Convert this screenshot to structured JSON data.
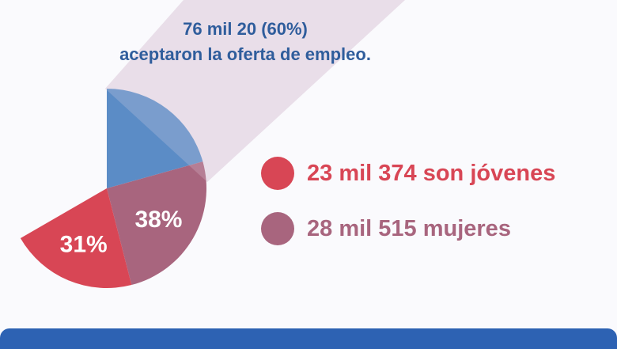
{
  "headline": {
    "line1": "76 mil 20 (60%)",
    "line2": "aceptaron la oferta de empleo."
  },
  "legend": [
    {
      "text": "23 mil 374 son jóvenes",
      "color": "#d84655"
    },
    {
      "text": "28 mil 515 mujeres",
      "color": "#a8657e"
    }
  ],
  "colors": {
    "accepted_slice": "#5b8cc6",
    "jovenes": "#d84655",
    "mujeres": "#a8657e",
    "beam": "#e7dce7",
    "headline": "#2f5d9c",
    "footer": "#2d62b3"
  },
  "chart_data": {
    "type": "pie",
    "categories": [
      "aceptaron la oferta de empleo",
      "mujeres",
      "jóvenes"
    ],
    "values": [
      31,
      38,
      31
    ],
    "labels": [
      "",
      "38%",
      "31%"
    ]
  }
}
